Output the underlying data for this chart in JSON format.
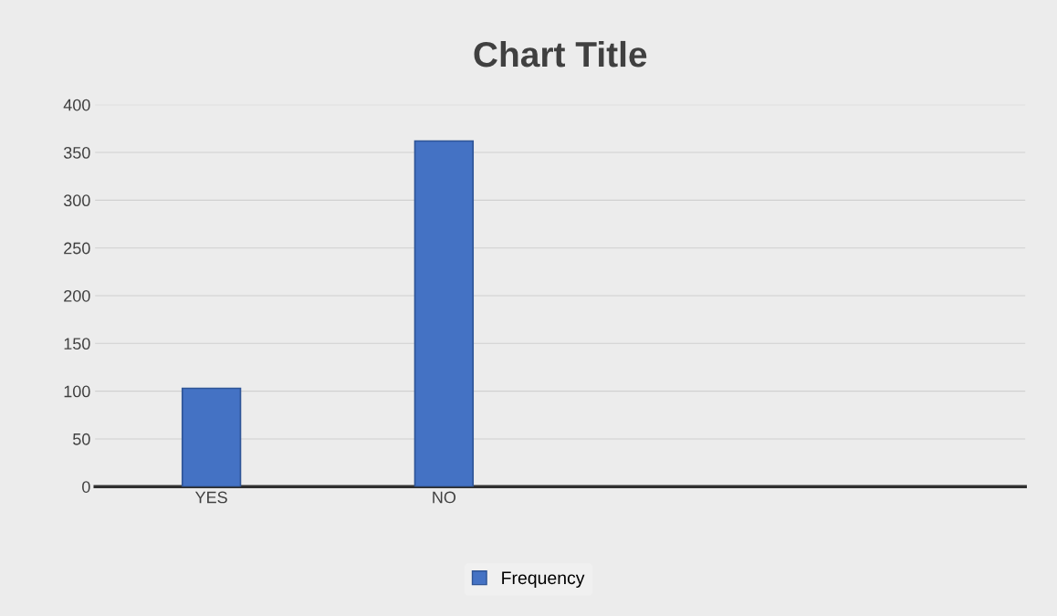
{
  "chart_data": {
    "type": "bar",
    "title": "Chart Title",
    "categories": [
      "YES",
      "NO",
      null,
      null
    ],
    "series": [
      {
        "name": "Frequency",
        "color": "#4472c4",
        "values": [
          103,
          362,
          null,
          null
        ]
      }
    ],
    "ylim": [
      0,
      400
    ],
    "yticks": [
      0,
      50,
      100,
      150,
      200,
      250,
      300,
      350,
      400
    ],
    "grid": "y",
    "legend": "bottom"
  }
}
